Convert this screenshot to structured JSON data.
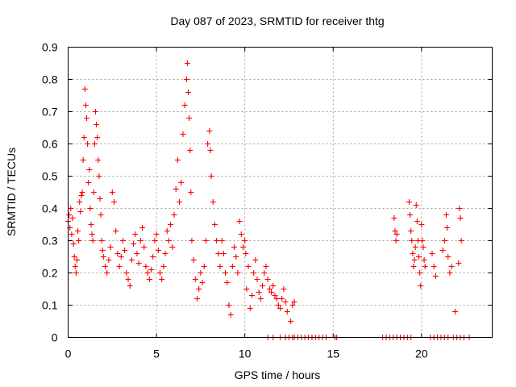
{
  "chart_data": {
    "type": "scatter",
    "title": "Day 087 of 2023, SRMTID for receiver thtg",
    "xlabel": "GPS time / hours",
    "ylabel": "SRMTID / TECUs",
    "xlim": [
      0,
      24
    ],
    "ylim": [
      0,
      0.9
    ],
    "xticks": [
      0,
      5,
      10,
      15,
      20
    ],
    "xtick_labels": [
      "0",
      "5",
      "10",
      "15",
      "20"
    ],
    "yticks": [
      0,
      0.1,
      0.2,
      0.3,
      0.4,
      0.5,
      0.6,
      0.7,
      0.8,
      0.9
    ],
    "ytick_labels": [
      "0",
      "0.1",
      "0.2",
      "0.3",
      "0.4",
      "0.5",
      "0.6",
      "0.7",
      "0.8",
      "0.9"
    ],
    "grid": true,
    "marker_color": "#ff0000",
    "series": [
      {
        "name": "SRMTID",
        "marker": "plus",
        "points": [
          [
            0.0,
            0.36
          ],
          [
            0.05,
            0.38
          ],
          [
            0.1,
            0.34
          ],
          [
            0.15,
            0.4
          ],
          [
            0.2,
            0.32
          ],
          [
            0.25,
            0.37
          ],
          [
            0.3,
            0.29
          ],
          [
            0.35,
            0.25
          ],
          [
            0.4,
            0.22
          ],
          [
            0.45,
            0.2
          ],
          [
            0.5,
            0.24
          ],
          [
            0.55,
            0.33
          ],
          [
            0.6,
            0.3
          ],
          [
            0.65,
            0.42
          ],
          [
            0.7,
            0.39
          ],
          [
            0.75,
            0.44
          ],
          [
            0.8,
            0.45
          ],
          [
            0.85,
            0.55
          ],
          [
            0.9,
            0.62
          ],
          [
            0.95,
            0.77
          ],
          [
            1.0,
            0.72
          ],
          [
            1.05,
            0.68
          ],
          [
            1.1,
            0.6
          ],
          [
            1.15,
            0.48
          ],
          [
            1.2,
            0.52
          ],
          [
            1.25,
            0.4
          ],
          [
            1.3,
            0.35
          ],
          [
            1.35,
            0.32
          ],
          [
            1.4,
            0.3
          ],
          [
            1.45,
            0.45
          ],
          [
            1.5,
            0.6
          ],
          [
            1.55,
            0.7
          ],
          [
            1.6,
            0.66
          ],
          [
            1.65,
            0.62
          ],
          [
            1.7,
            0.55
          ],
          [
            1.75,
            0.5
          ],
          [
            1.8,
            0.43
          ],
          [
            1.85,
            0.38
          ],
          [
            1.9,
            0.3
          ],
          [
            1.95,
            0.27
          ],
          [
            2.0,
            0.25
          ],
          [
            2.1,
            0.22
          ],
          [
            2.2,
            0.2
          ],
          [
            2.3,
            0.24
          ],
          [
            2.4,
            0.28
          ],
          [
            2.5,
            0.45
          ],
          [
            2.6,
            0.42
          ],
          [
            2.7,
            0.33
          ],
          [
            2.8,
            0.26
          ],
          [
            2.9,
            0.22
          ],
          [
            3.0,
            0.25
          ],
          [
            3.1,
            0.3
          ],
          [
            3.2,
            0.27
          ],
          [
            3.3,
            0.2
          ],
          [
            3.4,
            0.18
          ],
          [
            3.5,
            0.16
          ],
          [
            3.6,
            0.24
          ],
          [
            3.7,
            0.29
          ],
          [
            3.8,
            0.32
          ],
          [
            3.9,
            0.26
          ],
          [
            4.0,
            0.23
          ],
          [
            4.1,
            0.3
          ],
          [
            4.2,
            0.34
          ],
          [
            4.3,
            0.28
          ],
          [
            4.4,
            0.22
          ],
          [
            4.5,
            0.2
          ],
          [
            4.6,
            0.18
          ],
          [
            4.7,
            0.21
          ],
          [
            4.8,
            0.25
          ],
          [
            4.9,
            0.3
          ],
          [
            5.0,
            0.32
          ],
          [
            5.1,
            0.27
          ],
          [
            5.2,
            0.2
          ],
          [
            5.3,
            0.18
          ],
          [
            5.4,
            0.22
          ],
          [
            5.5,
            0.26
          ],
          [
            5.6,
            0.33
          ],
          [
            5.7,
            0.3
          ],
          [
            5.8,
            0.35
          ],
          [
            5.9,
            0.28
          ],
          [
            6.0,
            0.38
          ],
          [
            6.1,
            0.46
          ],
          [
            6.2,
            0.55
          ],
          [
            6.3,
            0.42
          ],
          [
            6.4,
            0.48
          ],
          [
            6.5,
            0.63
          ],
          [
            6.6,
            0.72
          ],
          [
            6.7,
            0.8
          ],
          [
            6.75,
            0.85
          ],
          [
            6.8,
            0.76
          ],
          [
            6.85,
            0.68
          ],
          [
            6.9,
            0.58
          ],
          [
            6.95,
            0.45
          ],
          [
            7.0,
            0.3
          ],
          [
            7.1,
            0.24
          ],
          [
            7.2,
            0.18
          ],
          [
            7.3,
            0.12
          ],
          [
            7.4,
            0.15
          ],
          [
            7.5,
            0.2
          ],
          [
            7.6,
            0.17
          ],
          [
            7.7,
            0.22
          ],
          [
            7.8,
            0.3
          ],
          [
            7.9,
            0.6
          ],
          [
            8.0,
            0.64
          ],
          [
            8.05,
            0.58
          ],
          [
            8.1,
            0.5
          ],
          [
            8.2,
            0.42
          ],
          [
            8.3,
            0.35
          ],
          [
            8.4,
            0.3
          ],
          [
            8.5,
            0.26
          ],
          [
            8.6,
            0.22
          ],
          [
            8.7,
            0.3
          ],
          [
            8.8,
            0.26
          ],
          [
            8.9,
            0.2
          ],
          [
            9.0,
            0.17
          ],
          [
            9.1,
            0.1
          ],
          [
            9.2,
            0.07
          ],
          [
            9.3,
            0.22
          ],
          [
            9.4,
            0.28
          ],
          [
            9.5,
            0.25
          ],
          [
            9.6,
            0.2
          ],
          [
            9.7,
            0.36
          ],
          [
            9.8,
            0.32
          ],
          [
            9.9,
            0.28
          ],
          [
            10.0,
            0.3
          ],
          [
            10.05,
            0.26
          ],
          [
            10.1,
            0.15
          ],
          [
            10.2,
            0.22
          ],
          [
            10.3,
            0.09
          ],
          [
            10.4,
            0.13
          ],
          [
            10.5,
            0.2
          ],
          [
            10.6,
            0.24
          ],
          [
            10.7,
            0.18
          ],
          [
            10.8,
            0.14
          ],
          [
            10.9,
            0.12
          ],
          [
            11.0,
            0.16
          ],
          [
            11.1,
            0.2
          ],
          [
            11.2,
            0.22
          ],
          [
            11.3,
            0.18
          ],
          [
            11.4,
            0.15
          ],
          [
            11.5,
            0.14
          ],
          [
            11.6,
            0.16
          ],
          [
            11.7,
            0.13
          ],
          [
            11.8,
            0.12
          ],
          [
            11.9,
            0.1
          ],
          [
            12.0,
            0.09
          ],
          [
            12.1,
            0.12
          ],
          [
            12.2,
            0.15
          ],
          [
            12.3,
            0.11
          ],
          [
            12.4,
            0.08
          ],
          [
            12.6,
            0.05
          ],
          [
            12.7,
            0.1
          ],
          [
            12.8,
            0.11
          ],
          [
            11.3,
            0
          ],
          [
            11.6,
            0
          ],
          [
            12.0,
            0
          ],
          [
            12.3,
            0
          ],
          [
            12.5,
            0
          ],
          [
            12.7,
            0
          ],
          [
            12.8,
            0
          ],
          [
            13.0,
            0
          ],
          [
            13.2,
            0
          ],
          [
            13.4,
            0
          ],
          [
            13.6,
            0
          ],
          [
            13.8,
            0
          ],
          [
            14.0,
            0
          ],
          [
            14.2,
            0
          ],
          [
            14.4,
            0
          ],
          [
            14.6,
            0
          ],
          [
            15.1,
            0
          ],
          [
            15.2,
            0
          ],
          [
            17.8,
            0
          ],
          [
            18.0,
            0
          ],
          [
            18.2,
            0
          ],
          [
            18.4,
            0
          ],
          [
            18.6,
            0
          ],
          [
            18.8,
            0
          ],
          [
            19.0,
            0
          ],
          [
            19.2,
            0
          ],
          [
            19.4,
            0
          ],
          [
            20.5,
            0
          ],
          [
            20.7,
            0
          ],
          [
            20.9,
            0
          ],
          [
            21.1,
            0
          ],
          [
            21.3,
            0
          ],
          [
            21.5,
            0
          ],
          [
            21.8,
            0
          ],
          [
            22.0,
            0
          ],
          [
            22.2,
            0
          ],
          [
            22.4,
            0
          ],
          [
            22.7,
            0
          ],
          [
            18.45,
            0.37
          ],
          [
            18.5,
            0.33
          ],
          [
            18.55,
            0.3
          ],
          [
            18.6,
            0.32
          ],
          [
            19.3,
            0.42
          ],
          [
            19.35,
            0.38
          ],
          [
            19.4,
            0.33
          ],
          [
            19.45,
            0.3
          ],
          [
            19.5,
            0.26
          ],
          [
            19.55,
            0.22
          ],
          [
            19.6,
            0.24
          ],
          [
            19.65,
            0.28
          ],
          [
            19.7,
            0.41
          ],
          [
            19.75,
            0.36
          ],
          [
            19.8,
            0.3
          ],
          [
            19.85,
            0.25
          ],
          [
            19.9,
            0.2
          ],
          [
            19.95,
            0.16
          ],
          [
            20.0,
            0.35
          ],
          [
            20.05,
            0.3
          ],
          [
            20.1,
            0.28
          ],
          [
            20.15,
            0.24
          ],
          [
            20.2,
            0.22
          ],
          [
            20.6,
            0.26
          ],
          [
            20.7,
            0.22
          ],
          [
            20.8,
            0.19
          ],
          [
            21.2,
            0.27
          ],
          [
            21.3,
            0.3
          ],
          [
            21.4,
            0.38
          ],
          [
            21.45,
            0.34
          ],
          [
            21.5,
            0.25
          ],
          [
            21.6,
            0.2
          ],
          [
            21.7,
            0.22
          ],
          [
            21.9,
            0.08
          ],
          [
            22.1,
            0.23
          ],
          [
            22.15,
            0.4
          ],
          [
            22.2,
            0.37
          ],
          [
            22.25,
            0.3
          ]
        ]
      }
    ]
  }
}
